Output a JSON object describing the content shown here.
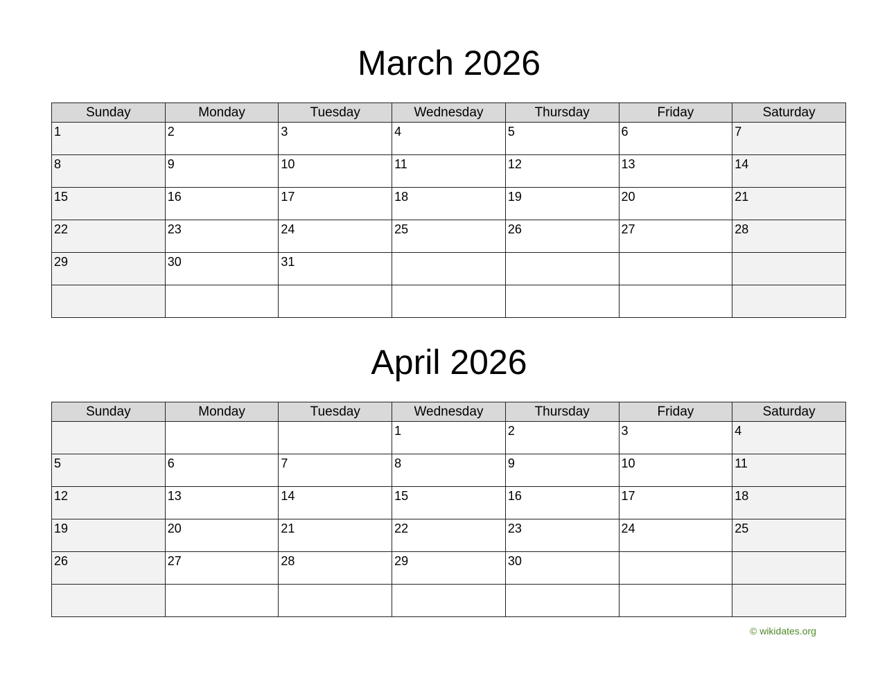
{
  "weekdays": [
    "Sunday",
    "Monday",
    "Tuesday",
    "Wednesday",
    "Thursday",
    "Friday",
    "Saturday"
  ],
  "months": [
    {
      "title": "March 2026",
      "weeks": [
        [
          "1",
          "2",
          "3",
          "4",
          "5",
          "6",
          "7"
        ],
        [
          "8",
          "9",
          "10",
          "11",
          "12",
          "13",
          "14"
        ],
        [
          "15",
          "16",
          "17",
          "18",
          "19",
          "20",
          "21"
        ],
        [
          "22",
          "23",
          "24",
          "25",
          "26",
          "27",
          "28"
        ],
        [
          "29",
          "30",
          "31",
          "",
          "",
          "",
          ""
        ],
        [
          "",
          "",
          "",
          "",
          "",
          "",
          ""
        ]
      ]
    },
    {
      "title": "April 2026",
      "weeks": [
        [
          "",
          "",
          "",
          "1",
          "2",
          "3",
          "4"
        ],
        [
          "5",
          "6",
          "7",
          "8",
          "9",
          "10",
          "11"
        ],
        [
          "12",
          "13",
          "14",
          "15",
          "16",
          "17",
          "18"
        ],
        [
          "19",
          "20",
          "21",
          "22",
          "23",
          "24",
          "25"
        ],
        [
          "26",
          "27",
          "28",
          "29",
          "30",
          "",
          ""
        ],
        [
          "",
          "",
          "",
          "",
          "",
          "",
          ""
        ]
      ]
    }
  ],
  "footer": {
    "copyright": "© wikidates.org"
  },
  "colors": {
    "header_bg": "#d9d9d9",
    "weekend_bg": "#f2f2f2",
    "footer_text": "#4e8a2a"
  }
}
